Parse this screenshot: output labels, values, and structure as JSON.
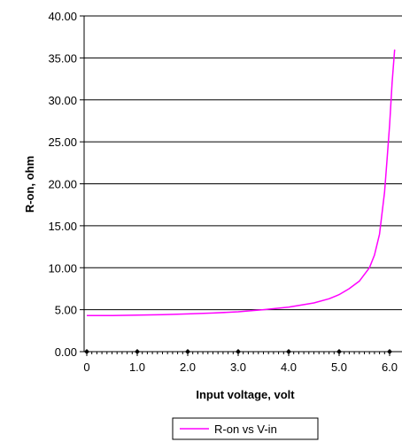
{
  "chart_data": {
    "type": "line",
    "xlabel": "Input voltage, volt",
    "ylabel": "R-on, ohm",
    "xlim": [
      0,
      6.1
    ],
    "ylim": [
      0,
      40
    ],
    "x_ticks": [
      "0",
      "1.0",
      "2.0",
      "3.0",
      "4.0",
      "5.0",
      "6.0"
    ],
    "y_ticks": [
      "0.00",
      "5.00",
      "10.00",
      "15.00",
      "20.00",
      "25.00",
      "30.00",
      "35.00",
      "40.00"
    ],
    "grid": "horizontal",
    "legend": "bottom",
    "series": [
      {
        "name": "R-on vs V-in",
        "color": "#ff00ff",
        "x": [
          0,
          0.5,
          1.0,
          1.5,
          2.0,
          2.5,
          3.0,
          3.5,
          4.0,
          4.5,
          4.8,
          5.0,
          5.2,
          5.4,
          5.6,
          5.7,
          5.8,
          5.9,
          5.95,
          6.0,
          6.05,
          6.1
        ],
        "y": [
          4.3,
          4.3,
          4.35,
          4.4,
          4.5,
          4.6,
          4.75,
          5.0,
          5.3,
          5.8,
          6.3,
          6.8,
          7.5,
          8.4,
          10.0,
          11.5,
          14.0,
          19.0,
          23.0,
          27.0,
          32.0,
          36.0
        ]
      }
    ]
  }
}
